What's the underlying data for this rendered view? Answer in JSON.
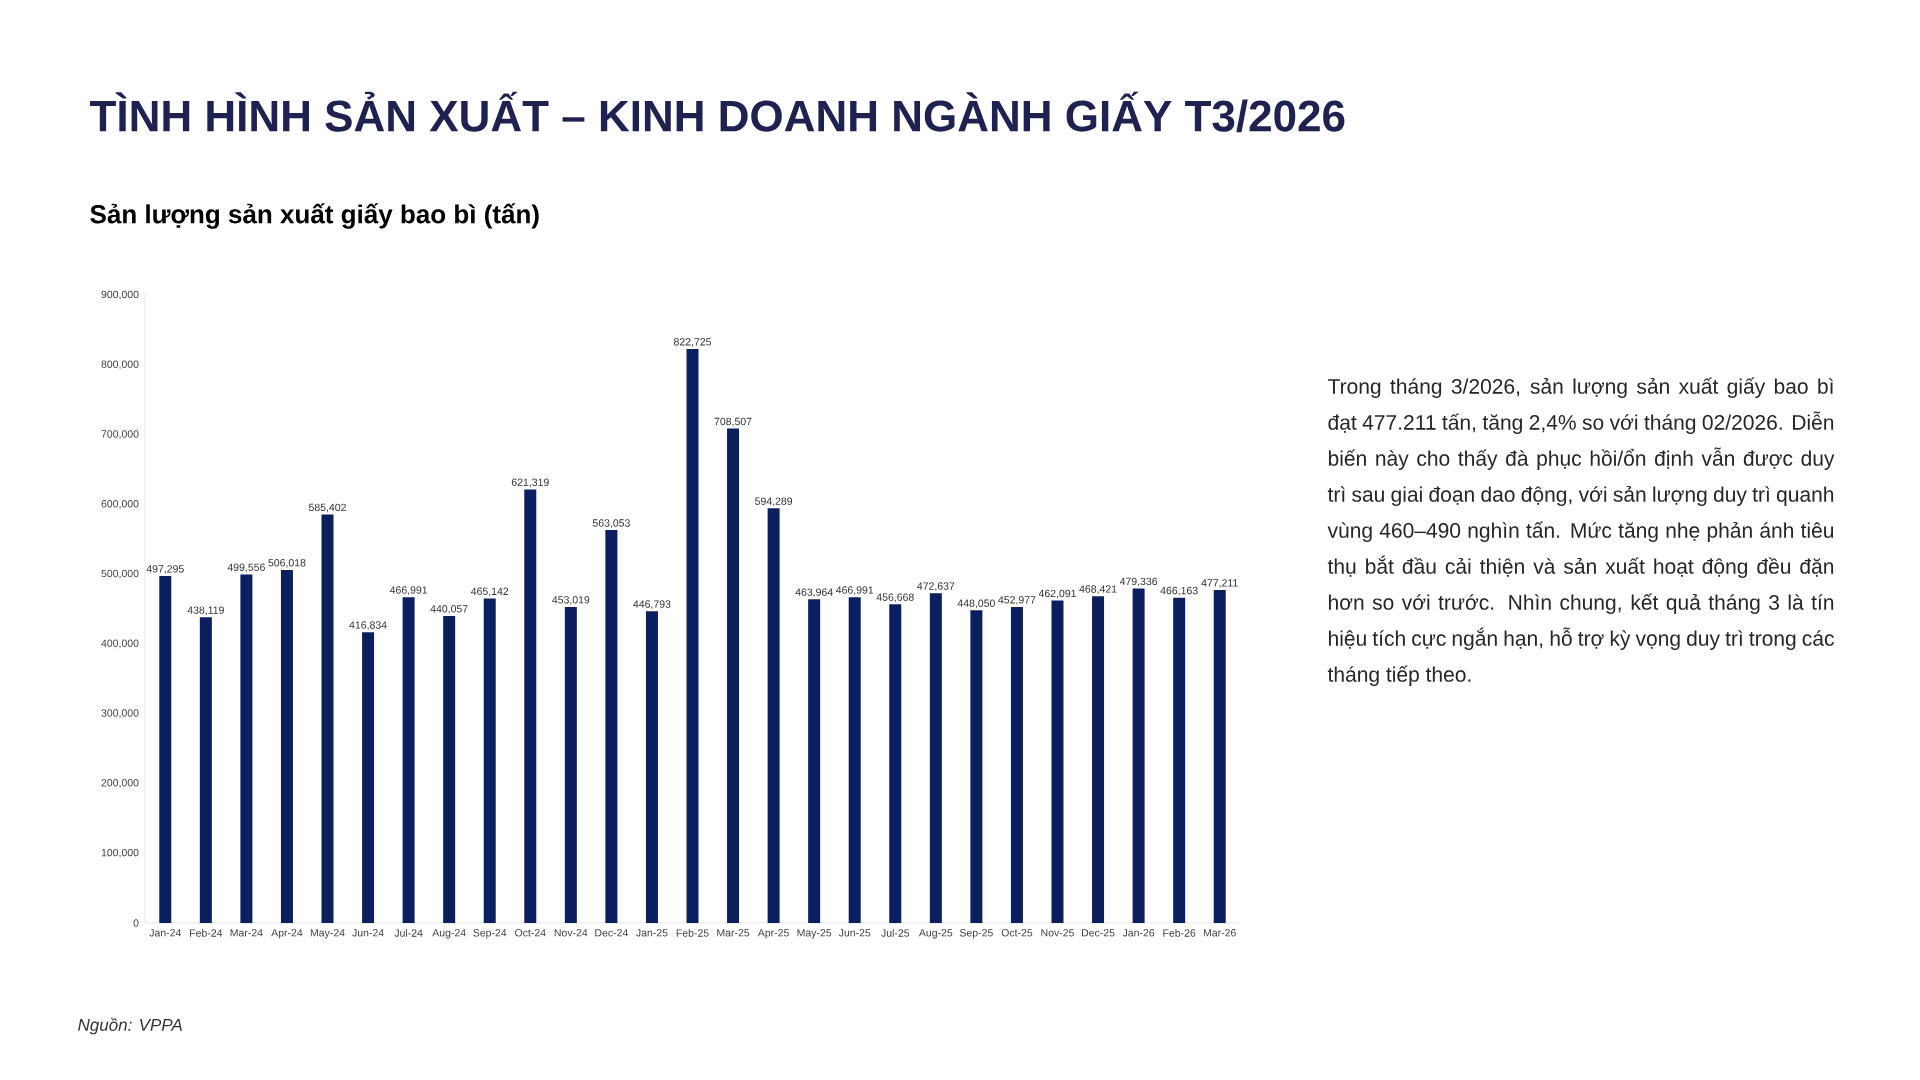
{
  "chart_data": {
    "type": "bar",
    "title": "TÌNH HÌNH SẢN XUẤT – KINH DOANH NGÀNH GIẤY T3/2026",
    "subtitle": "Sản lượng sản xuất giấy bao bì (tấn)",
    "annotations": [
      "Trong tháng 3/2026, sản lượng sản xuất giấy bao bì đạt 477.211 tấn, tăng 2,4% so với tháng 02/2026. Diễn biến này cho thấy đà phục hồi/ổn định vẫn được duy trì sau giai đoạn dao động, với sản lượng duy trì quanh vùng 460–490 nghìn tấn. Mức tăng nhẹ phản ánh tiêu thụ bắt đầu cải thiện và sản xuất hoạt động đều đặn hơn so với trước. Nhìn chung, kết quả tháng 3 là tín hiệu tích cực ngắn hạn, hỗ trợ kỳ vọng duy trì trong các tháng tiếp theo.",
      "Nguồn: VPPA"
    ],
    "categories": [
      "Jan-24",
      "Feb-24",
      "Mar-24",
      "Apr-24",
      "May-24",
      "Jun-24",
      "Jul-24",
      "Aug-24",
      "Sep-24",
      "Oct-24",
      "Nov-24",
      "Dec-24",
      "Jan-25",
      "Feb-25",
      "Mar-25",
      "Apr-25",
      "May-25",
      "Jun-25",
      "Jul-25",
      "Aug-25",
      "Sep-25",
      "Oct-25",
      "Nov-25",
      "Dec-25",
      "Jan-26",
      "Feb-26",
      "Mar-26"
    ],
    "values": [
      497295,
      438119,
      499556,
      506018,
      585402,
      416834,
      466991,
      440057,
      465142,
      621319,
      453019,
      563053,
      446793,
      822725,
      708507,
      594289,
      463964,
      466991,
      456668,
      472637,
      448050,
      452977,
      462091,
      468421,
      479336,
      466163,
      477211
    ],
    "value_labels": [
      "497,295",
      "438,119",
      "499,556",
      "506,018",
      "585,402",
      "416,834",
      "466,991",
      "440,057",
      "465,142",
      "621,319",
      "453,019",
      "563,053",
      "446,793",
      "822,725",
      "708,507",
      "594,289",
      "463,964",
      "466,991",
      "456,668",
      "472,637",
      "448,050",
      "452,977",
      "462,091",
      "468,421",
      "479,336",
      "466,163",
      "477,211"
    ],
    "color": "#0b1f5e",
    "ylim": [
      0,
      900000
    ],
    "yticks": [
      0,
      {
        "value": 100000,
        "label": "100,000"
      },
      {
        "value": 200000,
        "label": "200,000"
      },
      {
        "value": 300000,
        "label": "300,000"
      },
      {
        "value": 400000,
        "label": "400,000"
      },
      {
        "value": 500000,
        "label": "500,000"
      },
      {
        "value": 600000,
        "label": "600,000"
      },
      {
        "value": 700000,
        "label": "700,000"
      },
      {
        "value": 800000,
        "label": "800,000"
      },
      {
        "value": 900000,
        "label": "900,000"
      }
    ]
  }
}
